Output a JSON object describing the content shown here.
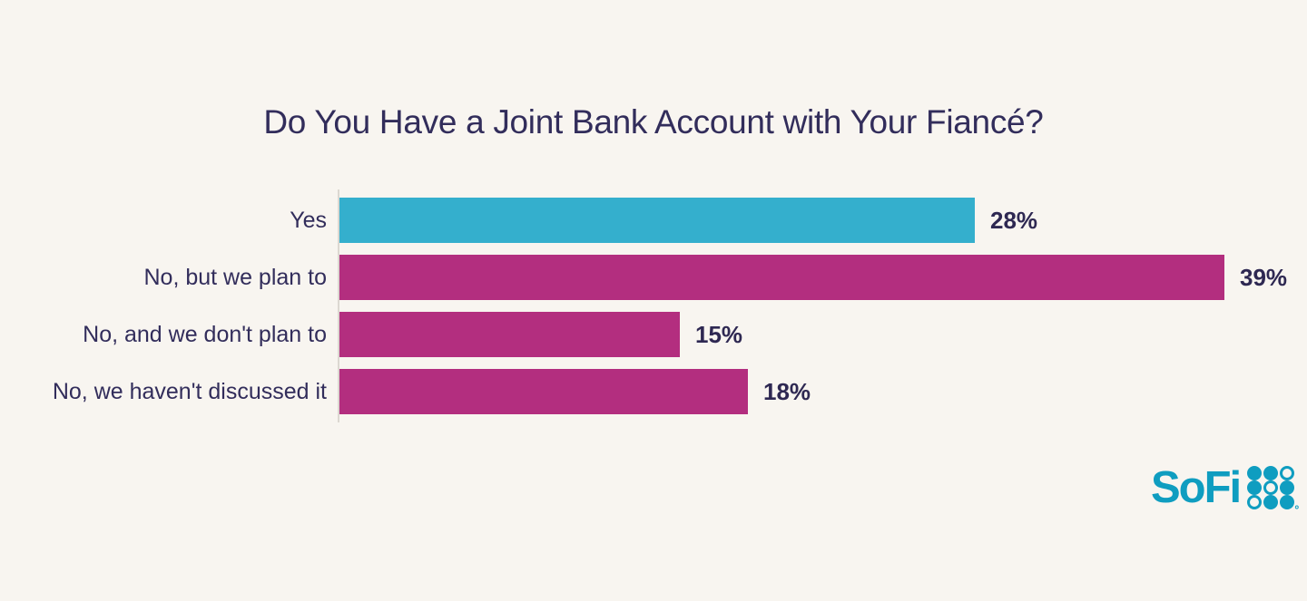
{
  "chart_data": {
    "type": "bar",
    "orientation": "horizontal",
    "title": "Do You Have a Joint Bank Account with Your Fiancé?",
    "categories": [
      "Yes",
      "No, but we plan to",
      "No, and we don't plan to",
      "No, we haven't discussed it"
    ],
    "values": [
      28,
      39,
      15,
      18
    ],
    "value_labels": [
      "28%",
      "39%",
      "15%",
      "18%"
    ],
    "unit": "percent",
    "xlim": [
      0,
      40
    ],
    "grid": false,
    "legend": false,
    "bar_colors": [
      "#34AFCD",
      "#B32E7F",
      "#B32E7F",
      "#B32E7F"
    ]
  },
  "branding": {
    "logo_text": "SoFi",
    "logo_mark": "sofi-dot-grid",
    "logo_color": "#0F9DC0"
  },
  "colors": {
    "background": "#F8F5F0",
    "text": "#322D5B",
    "axis_line": "#DCD8D1",
    "bar_teal": "#34AFCD",
    "bar_magenta": "#B32E7F"
  }
}
